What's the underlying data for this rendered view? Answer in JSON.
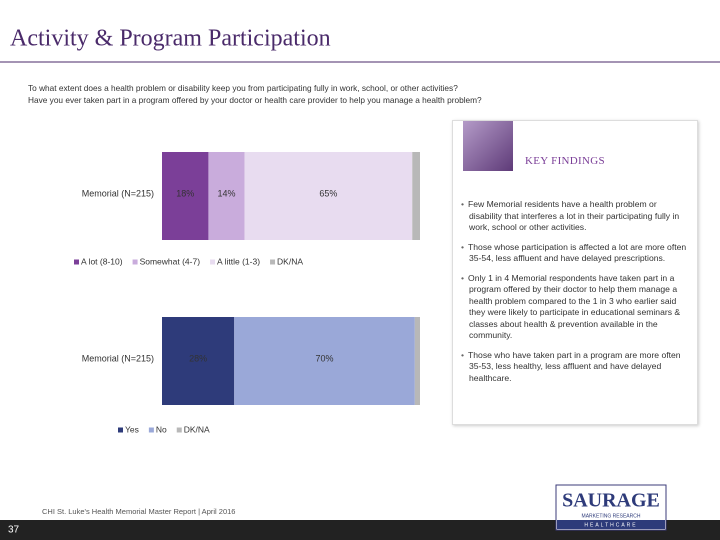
{
  "title": "Activity & Program Participation",
  "questions": [
    "To what extent does a health problem or disability keep you from participating fully in work, school, or other activities?",
    "Have you ever taken part in a program offered by your doctor or health care provider to help you manage a health problem?"
  ],
  "chart_data": [
    {
      "type": "stacked_bar",
      "categories": [
        "Memorial (N=215)"
      ],
      "xlim": [
        0,
        100
      ],
      "series": [
        {
          "name": "A lot (8-10)",
          "color": "#7b3f98",
          "values": [
            18
          ],
          "value_labels": [
            "18%"
          ]
        },
        {
          "name": "Somewhat (4-7)",
          "color": "#c9acdc",
          "values": [
            14
          ],
          "value_labels": [
            "14%"
          ]
        },
        {
          "name": "A little (1-3)",
          "color": "#e8dcf0",
          "values": [
            65
          ],
          "value_labels": [
            "65%"
          ]
        },
        {
          "name": "DK/NA",
          "color": "#b8b8b8",
          "values": [
            3
          ]
        }
      ]
    },
    {
      "type": "stacked_bar",
      "categories": [
        "Memorial (N=215)"
      ],
      "xlim": [
        0,
        100
      ],
      "series": [
        {
          "name": "Yes",
          "color": "#2e3b7a",
          "values": [
            28
          ],
          "value_labels": [
            "28%"
          ]
        },
        {
          "name": "No",
          "color": "#9aa8d8",
          "values": [
            70
          ],
          "value_labels": [
            "70%"
          ]
        },
        {
          "name": "DK/NA",
          "color": "#b8b8b8",
          "values": [
            2
          ]
        }
      ]
    }
  ],
  "key_findings": {
    "heading": "KEY FINDINGS",
    "bullets": [
      "Few Memorial residents have a health problem or disability that interferes a lot in their participating fully in work, school or other activities.",
      "Those whose participation is affected a lot are more often 35-54, less affluent and have delayed prescriptions.",
      "Only 1 in 4 Memorial respondents have taken part in a program offered by their doctor to help them manage a health problem compared to the 1 in 3 who earlier said they were likely to participate in educational seminars & classes about health & prevention available in the community.",
      "Those who have taken part in a program are more often 35-53, less healthy, less affluent and have delayed healthcare."
    ]
  },
  "footer": "CHI St. Luke's Health Memorial Master Report | April 2016",
  "page_number": "37",
  "logo": {
    "name": "SAURAGE",
    "tagline": "MARKETING RESEARCH",
    "sub": "HEALTHCARE"
  }
}
